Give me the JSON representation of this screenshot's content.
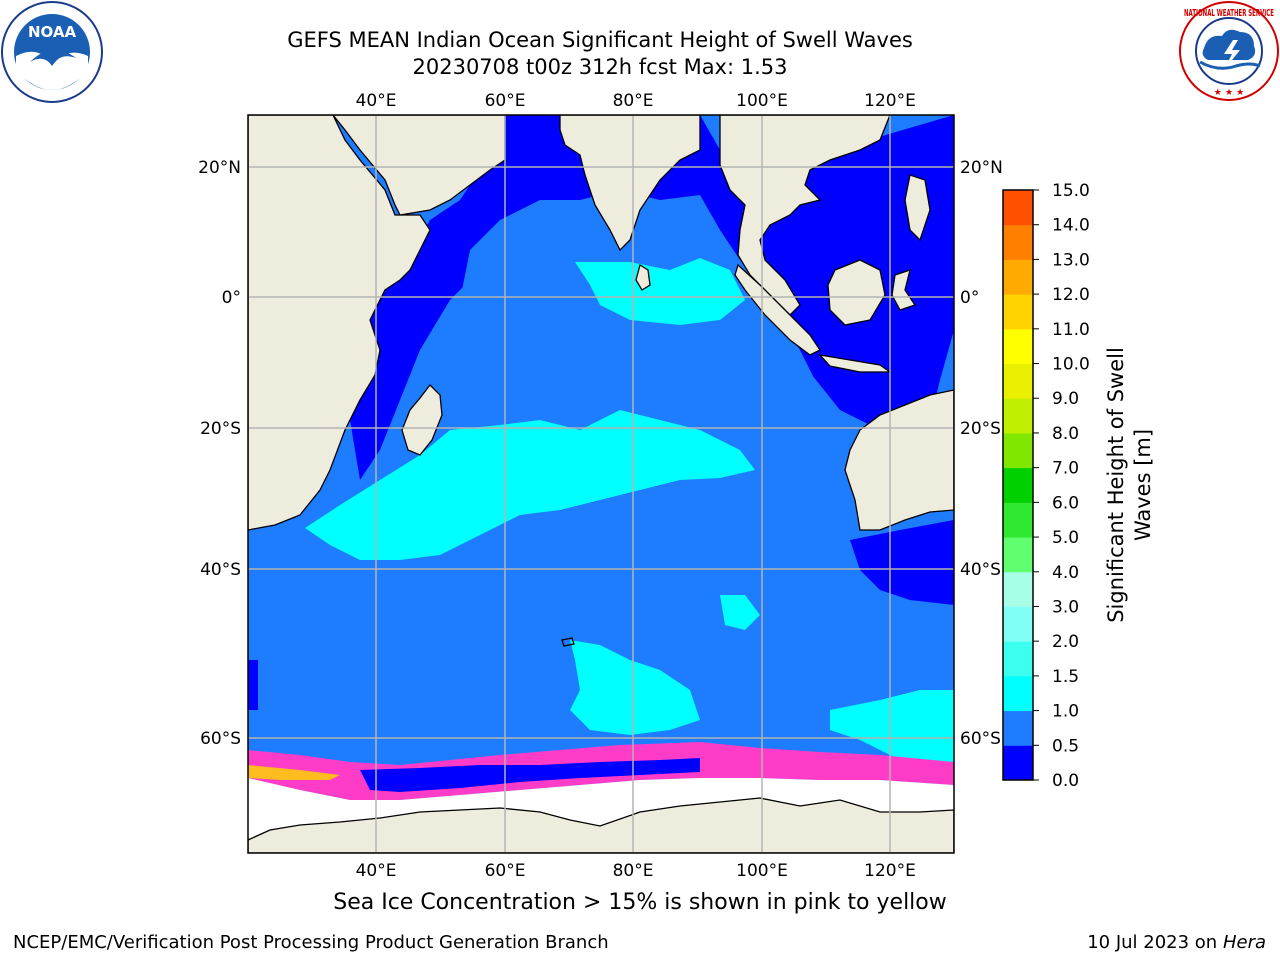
{
  "header": {
    "title_line1": "GEFS MEAN Indian Ocean Significant Height of Swell Waves",
    "title_line2": "20230708 t00z 312h fcst   Max: 1.53"
  },
  "map": {
    "lon_ticks": [
      "40°E",
      "60°E",
      "80°E",
      "100°E",
      "120°E"
    ],
    "lat_ticks": [
      "20°N",
      "0°",
      "20°S",
      "40°S",
      "60°S"
    ],
    "colors": {
      "land": "#eeecdd",
      "sea_ice": "#ffffff",
      "ice_edge": "#ff3cc8",
      "grid": "#b4b4b4"
    }
  },
  "colorbar": {
    "label_line1": "Significant Height of Swell",
    "label_line2": "Waves [m]",
    "tick_labels": [
      "0.0",
      "0.5",
      "1.0",
      "1.5",
      "2.0",
      "3.0",
      "4.0",
      "5.0",
      "6.0",
      "7.0",
      "8.0",
      "9.0",
      "10.0",
      "11.0",
      "12.0",
      "13.0",
      "14.0",
      "15.0"
    ],
    "colors": [
      "#0000ff",
      "#1e7cff",
      "#00ffff",
      "#3cffee",
      "#80fff4",
      "#a8ffe8",
      "#60ff70",
      "#30e830",
      "#00d000",
      "#80e800",
      "#c0f000",
      "#e8f000",
      "#ffff00",
      "#ffd200",
      "#ffaa00",
      "#ff8000",
      "#ff5000",
      "#ff2000",
      "#ff0000"
    ]
  },
  "caption": "Sea Ice Concentration > 15% is shown in pink to yellow",
  "footer": {
    "left": "NCEP/EMC/Verification Post Processing Product Generation Branch",
    "right_prefix": "10 Jul 2023 on",
    "right_machine": "Hera"
  },
  "logos": {
    "noaa_text": "NOAA",
    "nws_text": "NATIONAL WEATHER SERVICE"
  }
}
